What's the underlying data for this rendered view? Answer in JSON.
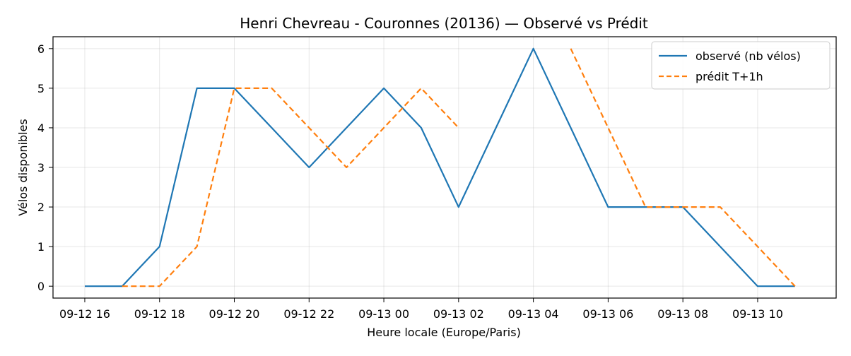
{
  "chart_data": {
    "type": "line",
    "title": "Henri Chevreau - Couronnes (20136) — Observé vs Prédit",
    "xlabel": "Heure locale (Europe/Paris)",
    "ylabel": "Vélos disponibles",
    "x_ticks": [
      "09-12 16",
      "09-12 18",
      "09-12 20",
      "09-12 22",
      "09-13 00",
      "09-13 02",
      "09-13 04",
      "09-13 06",
      "09-13 08",
      "09-13 10"
    ],
    "y_ticks": [
      "0",
      "1",
      "2",
      "3",
      "4",
      "5",
      "6"
    ],
    "ylim": [
      -0.3,
      6.3
    ],
    "xlim": [
      "09-12 15:09",
      "09-13 12:06"
    ],
    "grid": true,
    "legend_position": "top-right",
    "series": [
      {
        "name": "observé (nb vélos)",
        "color": "#1f77b4",
        "style": "solid",
        "x": [
          "09-12 16:00",
          "09-12 17:00",
          "09-12 18:00",
          "09-12 19:00",
          "09-12 20:00",
          "09-12 21:00",
          "09-12 22:00",
          "09-12 23:00",
          "09-13 00:00",
          "09-13 01:00",
          "09-13 02:00",
          "09-13 03:00",
          "09-13 04:00",
          "09-13 05:00",
          "09-13 06:00",
          "09-13 07:00",
          "09-13 08:00",
          "09-13 09:00",
          "09-13 10:00",
          "09-13 11:00"
        ],
        "values": [
          0,
          0,
          1,
          5,
          5,
          4,
          3,
          4,
          5,
          4,
          2,
          4,
          6,
          4,
          2,
          2,
          2,
          1,
          0,
          0
        ]
      },
      {
        "name": "prédit T+1h",
        "color": "#ff7f0e",
        "style": "dashed",
        "x": [
          "09-12 17:00",
          "09-12 18:00",
          "09-12 19:00",
          "09-12 20:00",
          "09-12 21:00",
          "09-12 22:00",
          "09-12 23:00",
          "09-13 00:00",
          "09-13 01:00",
          "09-13 02:00",
          "09-13 03:00",
          "09-13 04:00",
          "09-13 05:00",
          "09-13 06:00",
          "09-13 07:00",
          "09-13 08:00",
          "09-13 09:00",
          "09-13 10:00",
          "09-13 11:00"
        ],
        "values": [
          0,
          0,
          1,
          5,
          5,
          4,
          3,
          4,
          5,
          4,
          null,
          null,
          6,
          4,
          2,
          2,
          2,
          1,
          0
        ]
      }
    ]
  }
}
